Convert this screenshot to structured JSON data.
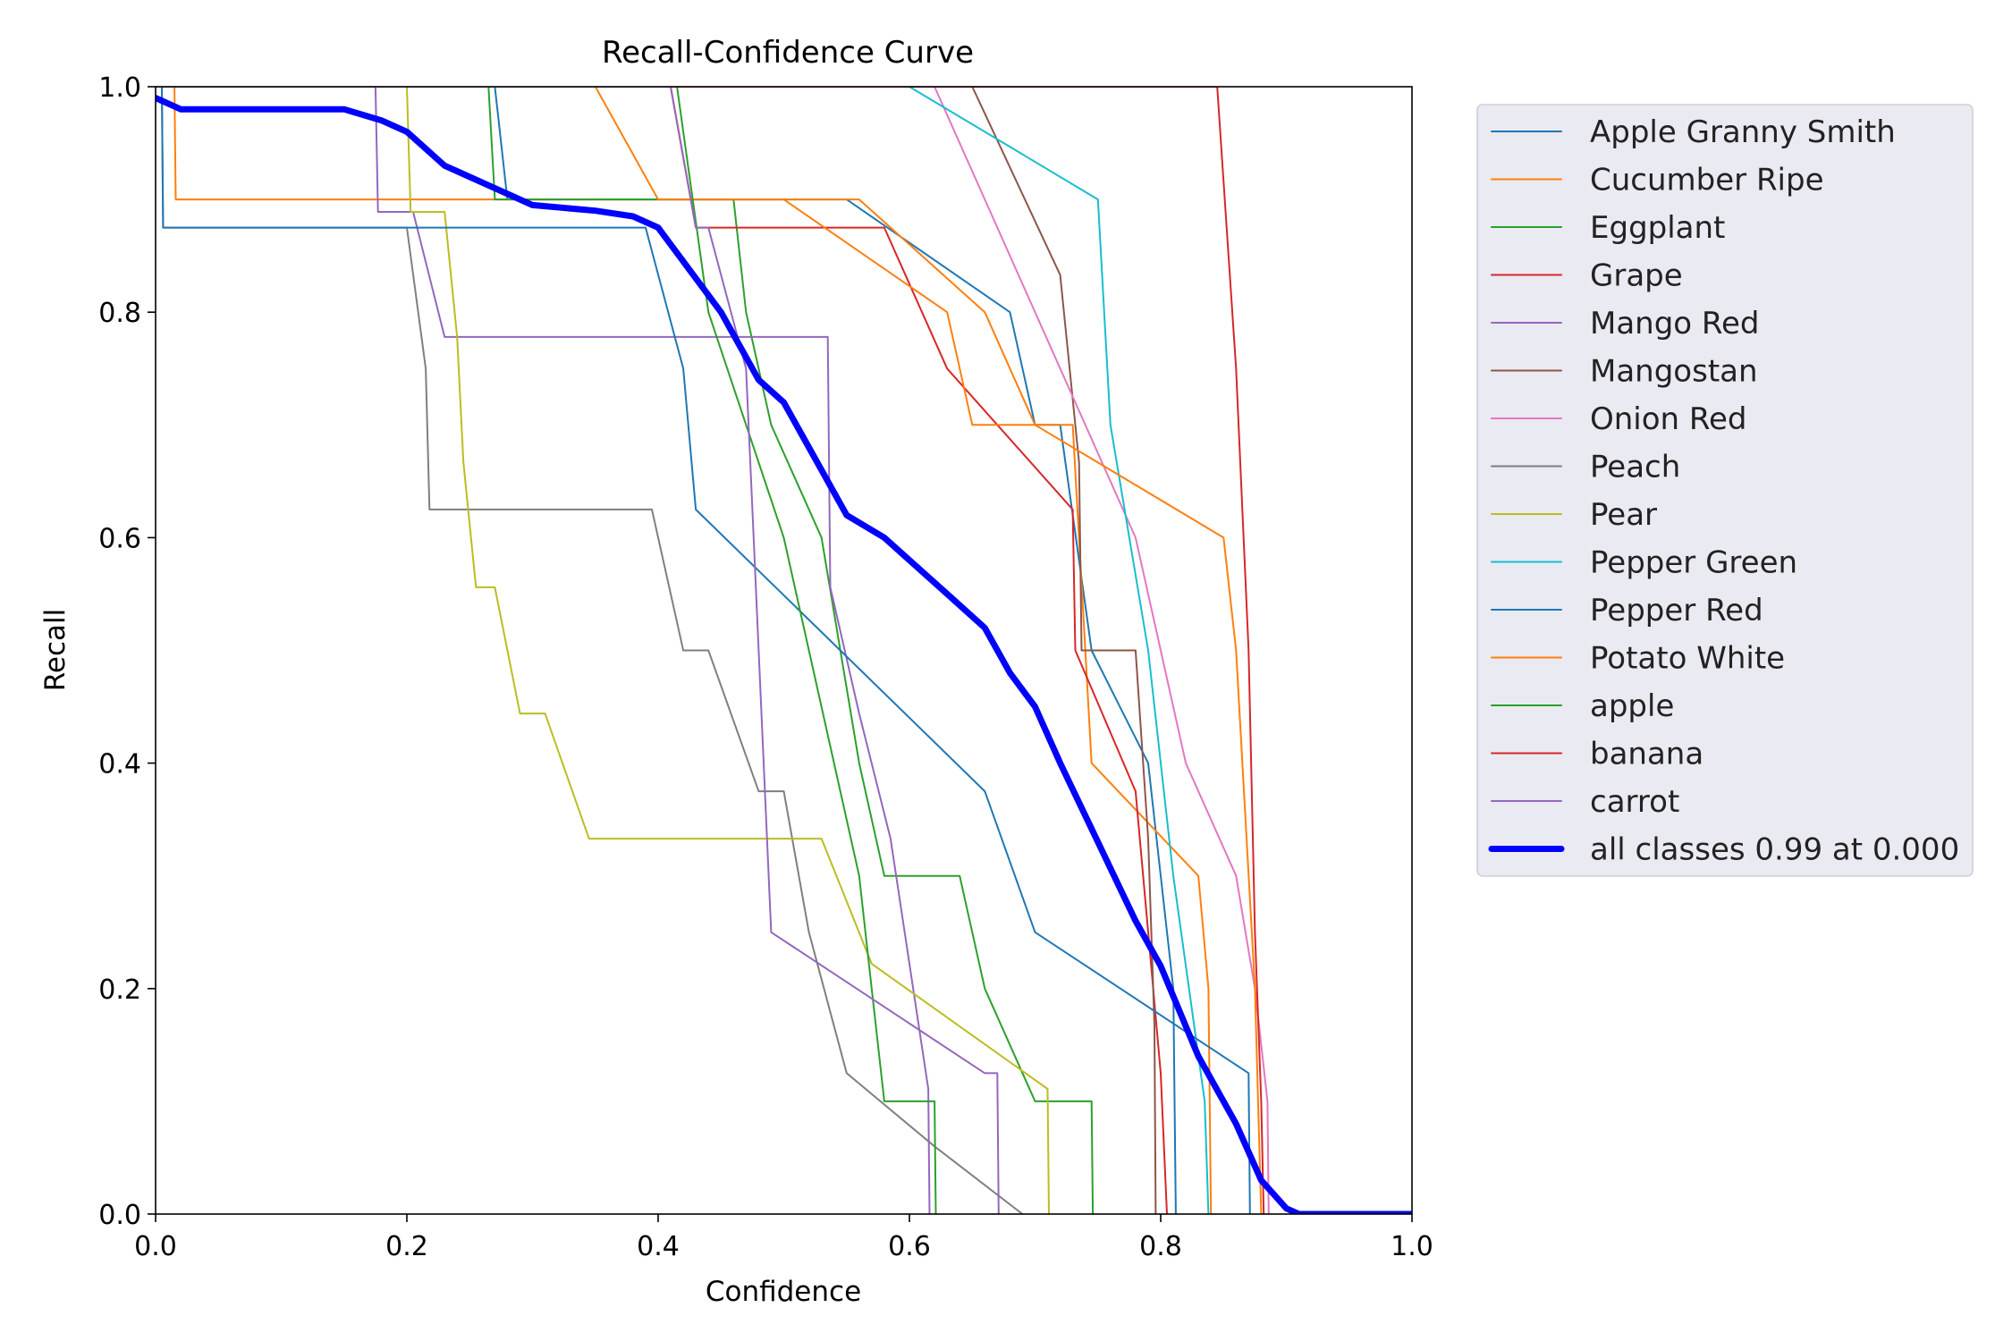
{
  "chart_data": {
    "type": "line",
    "title": "Recall-Confidence Curve",
    "xlabel": "Confidence",
    "ylabel": "Recall",
    "xlim": [
      0,
      1
    ],
    "ylim": [
      0,
      1
    ],
    "xticks": [
      "0.0",
      "0.2",
      "0.4",
      "0.6",
      "0.8",
      "1.0"
    ],
    "yticks": [
      "0.0",
      "0.2",
      "0.4",
      "0.6",
      "0.8",
      "1.0"
    ],
    "grid": false,
    "legend": "outside-right",
    "series": [
      {
        "name": "Apple Granny Smith",
        "color": "#1f77b4",
        "linewidth": 1,
        "x": [
          0.0,
          0.27,
          0.28,
          0.55,
          0.68,
          0.7,
          0.72,
          0.745,
          0.79,
          0.8,
          0.81,
          0.812
        ],
        "y": [
          1.0,
          1.0,
          0.9,
          0.9,
          0.8,
          0.7,
          0.7,
          0.5,
          0.4,
          0.3,
          0.2,
          0.0
        ]
      },
      {
        "name": "Cucumber Ripe",
        "color": "#ff7f0e",
        "linewidth": 1,
        "x": [
          0.0,
          0.015,
          0.016,
          0.56,
          0.66,
          0.7,
          0.73,
          0.74,
          0.745,
          0.83,
          0.838,
          0.84
        ],
        "y": [
          1.0,
          1.0,
          0.9,
          0.9,
          0.8,
          0.7,
          0.7,
          0.5,
          0.4,
          0.3,
          0.2,
          0.0
        ]
      },
      {
        "name": "Eggplant",
        "color": "#2ca02c",
        "linewidth": 1,
        "x": [
          0.0,
          0.265,
          0.27,
          0.43,
          0.435,
          0.46,
          0.47,
          0.49,
          0.53,
          0.56,
          0.58,
          0.64,
          0.66,
          0.7,
          0.745,
          0.746
        ],
        "y": [
          1.0,
          1.0,
          0.9,
          0.9,
          0.9,
          0.9,
          0.8,
          0.7,
          0.6,
          0.4,
          0.3,
          0.3,
          0.2,
          0.1,
          0.1,
          0.0
        ]
      },
      {
        "name": "Grape",
        "color": "#d62728",
        "linewidth": 1,
        "x": [
          0.0,
          0.41,
          0.43,
          0.58,
          0.63,
          0.73,
          0.732,
          0.78,
          0.79,
          0.8,
          0.805
        ],
        "y": [
          1.0,
          1.0,
          0.875,
          0.875,
          0.75,
          0.625,
          0.5,
          0.375,
          0.25,
          0.125,
          0.0
        ]
      },
      {
        "name": "Mango Red",
        "color": "#9467bd",
        "linewidth": 1,
        "x": [
          0.0,
          0.175,
          0.177,
          0.205,
          0.23,
          0.535,
          0.537,
          0.56,
          0.585,
          0.6,
          0.615,
          0.616
        ],
        "y": [
          1.0,
          1.0,
          0.889,
          0.889,
          0.778,
          0.778,
          0.556,
          0.444,
          0.333,
          0.222,
          0.111,
          0.0
        ]
      },
      {
        "name": "Mangostan",
        "color": "#8c564b",
        "linewidth": 1,
        "x": [
          0.0,
          0.65,
          0.72,
          0.735,
          0.737,
          0.78,
          0.79,
          0.795,
          0.796
        ],
        "y": [
          1.0,
          1.0,
          0.833,
          0.667,
          0.5,
          0.5,
          0.333,
          0.167,
          0.0
        ]
      },
      {
        "name": "Onion Red",
        "color": "#e377c2",
        "linewidth": 1,
        "x": [
          0.0,
          0.62,
          0.66,
          0.7,
          0.78,
          0.82,
          0.86,
          0.875,
          0.885,
          0.886
        ],
        "y": [
          1.0,
          1.0,
          0.9,
          0.8,
          0.6,
          0.4,
          0.3,
          0.2,
          0.1,
          0.0
        ]
      },
      {
        "name": "Peach",
        "color": "#7f7f7f",
        "linewidth": 1,
        "x": [
          0.0,
          0.005,
          0.006,
          0.2,
          0.215,
          0.218,
          0.22,
          0.395,
          0.42,
          0.44,
          0.48,
          0.5,
          0.52,
          0.55,
          0.62,
          0.69
        ],
        "y": [
          1.0,
          1.0,
          0.875,
          0.875,
          0.75,
          0.625,
          0.625,
          0.625,
          0.5,
          0.5,
          0.375,
          0.375,
          0.25,
          0.125,
          0.06,
          0.0
        ]
      },
      {
        "name": "Pear",
        "color": "#bcbd22",
        "linewidth": 1,
        "x": [
          0.0,
          0.2,
          0.203,
          0.23,
          0.24,
          0.245,
          0.255,
          0.27,
          0.29,
          0.31,
          0.345,
          0.53,
          0.57,
          0.71,
          0.711
        ],
        "y": [
          1.0,
          1.0,
          0.889,
          0.889,
          0.778,
          0.667,
          0.556,
          0.556,
          0.444,
          0.444,
          0.333,
          0.333,
          0.222,
          0.111,
          0.0
        ]
      },
      {
        "name": "Pepper Green",
        "color": "#17becf",
        "linewidth": 1,
        "x": [
          0.0,
          0.6,
          0.75,
          0.76,
          0.79,
          0.81,
          0.835,
          0.838
        ],
        "y": [
          1.0,
          1.0,
          0.9,
          0.7,
          0.5,
          0.3,
          0.1,
          0.0
        ]
      },
      {
        "name": "Pepper Red",
        "color": "#1f77b4",
        "linewidth": 1,
        "x": [
          0.0,
          0.005,
          0.006,
          0.39,
          0.42,
          0.43,
          0.66,
          0.7,
          0.87,
          0.871
        ],
        "y": [
          1.0,
          1.0,
          0.875,
          0.875,
          0.75,
          0.625,
          0.375,
          0.25,
          0.125,
          0.0
        ]
      },
      {
        "name": "Potato White",
        "color": "#ff7f0e",
        "linewidth": 1,
        "x": [
          0.0,
          0.35,
          0.4,
          0.5,
          0.63,
          0.65,
          0.7,
          0.85,
          0.86,
          0.875,
          0.88
        ],
        "y": [
          1.0,
          1.0,
          0.9,
          0.9,
          0.8,
          0.7,
          0.7,
          0.6,
          0.5,
          0.2,
          0.0
        ]
      },
      {
        "name": "apple",
        "color": "#2ca02c",
        "linewidth": 1,
        "x": [
          0.0,
          0.415,
          0.44,
          0.5,
          0.52,
          0.54,
          0.56,
          0.57,
          0.58,
          0.62,
          0.621
        ],
        "y": [
          1.0,
          1.0,
          0.8,
          0.6,
          0.5,
          0.4,
          0.3,
          0.2,
          0.1,
          0.1,
          0.0
        ]
      },
      {
        "name": "banana",
        "color": "#d62728",
        "linewidth": 1,
        "x": [
          0.0,
          0.845,
          0.86,
          0.87,
          0.875,
          0.88,
          0.882
        ],
        "y": [
          1.0,
          1.0,
          0.75,
          0.5,
          0.25,
          0.1,
          0.0
        ]
      },
      {
        "name": "carrot",
        "color": "#9467bd",
        "linewidth": 1,
        "x": [
          0.0,
          0.41,
          0.43,
          0.44,
          0.47,
          0.475,
          0.48,
          0.485,
          0.49,
          0.66,
          0.67,
          0.671
        ],
        "y": [
          1.0,
          1.0,
          0.875,
          0.875,
          0.75,
          0.625,
          0.5,
          0.375,
          0.25,
          0.125,
          0.125,
          0.0
        ]
      },
      {
        "name": "all classes 0.99 at 0.000",
        "color": "#0000ff",
        "linewidth": 6,
        "x": [
          0.0,
          0.02,
          0.03,
          0.04,
          0.15,
          0.18,
          0.2,
          0.23,
          0.28,
          0.3,
          0.35,
          0.38,
          0.4,
          0.45,
          0.48,
          0.5,
          0.52,
          0.55,
          0.58,
          0.6,
          0.63,
          0.66,
          0.68,
          0.7,
          0.72,
          0.75,
          0.78,
          0.8,
          0.83,
          0.86,
          0.88,
          0.9,
          0.91,
          1.0
        ],
        "y": [
          0.99,
          0.98,
          0.98,
          0.98,
          0.98,
          0.97,
          0.96,
          0.93,
          0.905,
          0.895,
          0.89,
          0.885,
          0.875,
          0.8,
          0.74,
          0.72,
          0.68,
          0.62,
          0.6,
          0.58,
          0.55,
          0.52,
          0.48,
          0.45,
          0.4,
          0.33,
          0.26,
          0.22,
          0.14,
          0.08,
          0.03,
          0.005,
          0.0,
          0.0
        ]
      }
    ]
  }
}
